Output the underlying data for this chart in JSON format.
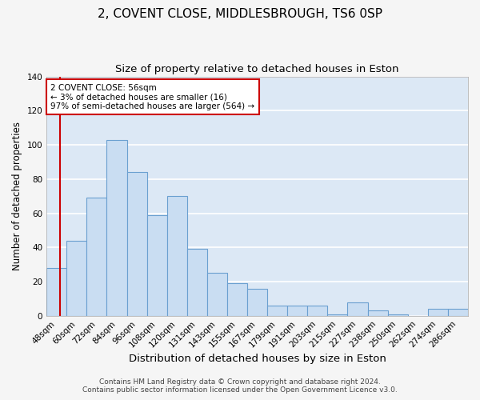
{
  "title": "2, COVENT CLOSE, MIDDLESBROUGH, TS6 0SP",
  "subtitle": "Size of property relative to detached houses in Eston",
  "xlabel": "Distribution of detached houses by size in Eston",
  "ylabel": "Number of detached properties",
  "categories": [
    "48sqm",
    "60sqm",
    "72sqm",
    "84sqm",
    "96sqm",
    "108sqm",
    "120sqm",
    "131sqm",
    "143sqm",
    "155sqm",
    "167sqm",
    "179sqm",
    "191sqm",
    "203sqm",
    "215sqm",
    "227sqm",
    "238sqm",
    "250sqm",
    "262sqm",
    "274sqm",
    "286sqm"
  ],
  "values": [
    28,
    44,
    69,
    103,
    84,
    59,
    70,
    39,
    25,
    19,
    16,
    6,
    6,
    6,
    1,
    8,
    3,
    1,
    0,
    4,
    4
  ],
  "bar_color": "#c9ddf2",
  "bar_edge_color": "#6a9fd0",
  "background_color": "#dce8f5",
  "grid_color": "#ffffff",
  "vline_color": "#cc0000",
  "annotation_text": "2 COVENT CLOSE: 56sqm\n← 3% of detached houses are smaller (16)\n97% of semi-detached houses are larger (564) →",
  "annotation_box_edge_color": "#cc0000",
  "ylim": [
    0,
    140
  ],
  "yticks": [
    0,
    20,
    40,
    60,
    80,
    100,
    120,
    140
  ],
  "footer_line1": "Contains HM Land Registry data © Crown copyright and database right 2024.",
  "footer_line2": "Contains public sector information licensed under the Open Government Licence v3.0.",
  "title_fontsize": 11,
  "subtitle_fontsize": 9.5,
  "xlabel_fontsize": 9.5,
  "ylabel_fontsize": 8.5,
  "tick_fontsize": 7.5,
  "footer_fontsize": 6.5,
  "fig_facecolor": "#f5f5f5"
}
